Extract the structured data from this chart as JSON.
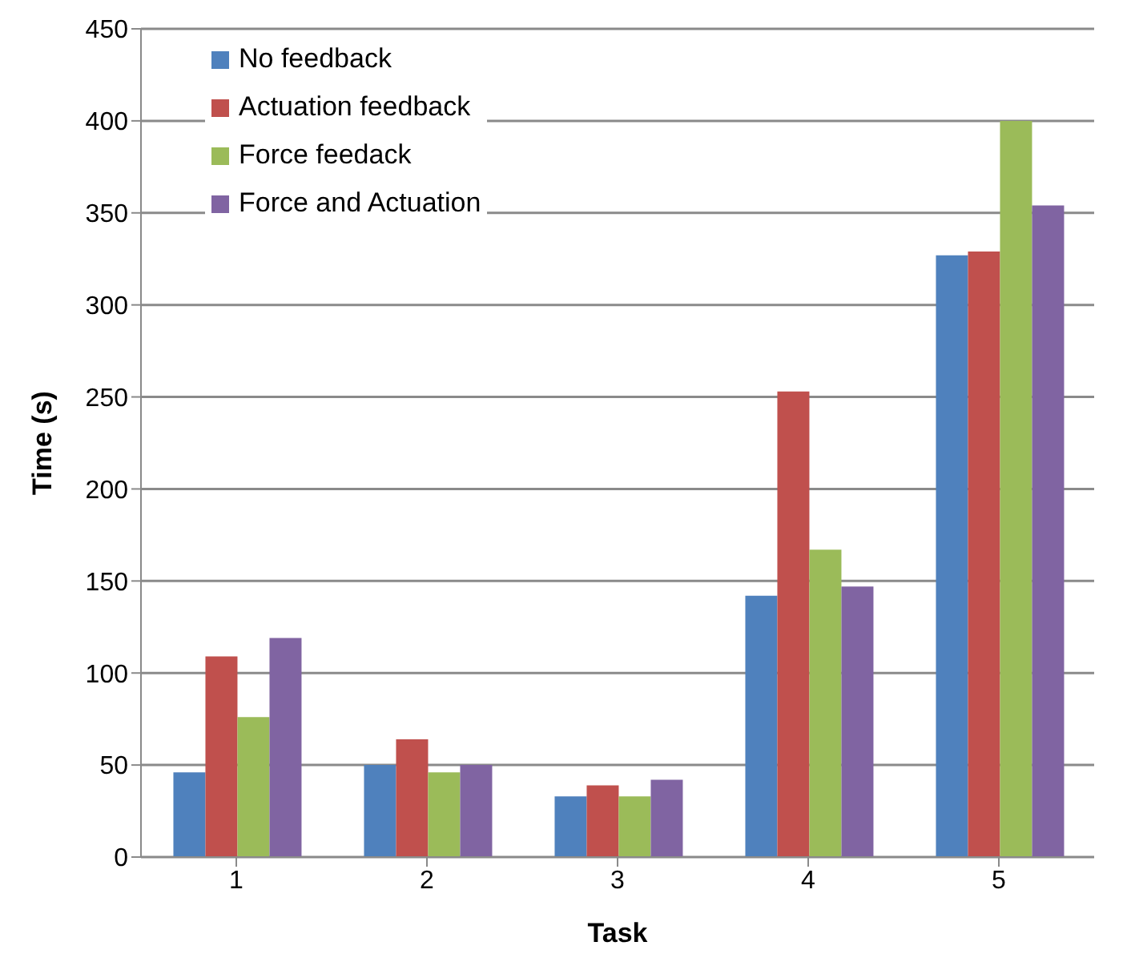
{
  "chart_data": {
    "type": "bar",
    "xlabel": "Task",
    "ylabel": "Time (s)",
    "categories": [
      "1",
      "2",
      "3",
      "4",
      "5"
    ],
    "series": [
      {
        "name": "No feedback",
        "color": "#4f81bd",
        "values": [
          46,
          50,
          33,
          142,
          327
        ]
      },
      {
        "name": "Actuation feedback",
        "color": "#c0504d",
        "values": [
          109,
          64,
          39,
          253,
          329
        ]
      },
      {
        "name": "Force feedack",
        "color": "#9bbb59",
        "values": [
          76,
          46,
          33,
          167,
          400
        ]
      },
      {
        "name": "Force and Actuation",
        "color": "#8064a2",
        "values": [
          119,
          50,
          42,
          147,
          354
        ]
      }
    ],
    "ylim": [
      0,
      450
    ],
    "yticks": [
      0,
      50,
      100,
      150,
      200,
      250,
      300,
      350,
      400,
      450
    ],
    "grid": "y",
    "legend": "top left"
  }
}
